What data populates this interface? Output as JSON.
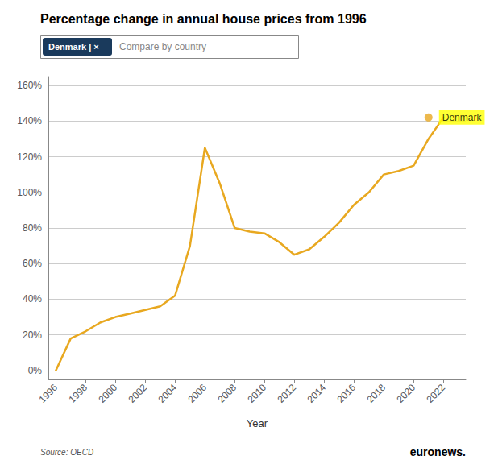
{
  "chart_data": {
    "type": "line",
    "title": "Percentage change in annual house prices from 1996",
    "xlabel": "Year",
    "x": [
      1996,
      1997,
      1998,
      1999,
      2000,
      2001,
      2002,
      2003,
      2004,
      2005,
      2006,
      2007,
      2008,
      2009,
      2010,
      2011,
      2012,
      2013,
      2014,
      2015,
      2016,
      2017,
      2018,
      2019,
      2020,
      2021,
      2022
    ],
    "values": [
      0,
      18,
      22,
      27,
      30,
      32,
      34,
      36,
      42,
      70,
      125,
      105,
      80,
      78,
      77,
      72,
      65,
      68,
      75,
      83,
      93,
      100,
      110,
      112,
      115,
      130,
      142
    ],
    "color": "#E8A820",
    "xlim": [
      1995.5,
      2023.5
    ],
    "xticks": [
      1996,
      1998,
      2000,
      2002,
      2004,
      2006,
      2008,
      2010,
      2012,
      2014,
      2016,
      2018,
      2020,
      2022
    ],
    "ylim": [
      -5,
      165
    ],
    "yticks": [
      {
        "value": 0,
        "label": "0%"
      },
      {
        "value": 20,
        "label": "20%"
      },
      {
        "value": 40,
        "label": "40%"
      },
      {
        "value": 60,
        "label": "60%"
      },
      {
        "value": 80,
        "label": "80%"
      },
      {
        "value": 100,
        "label": "100%"
      },
      {
        "value": 120,
        "label": "120%"
      },
      {
        "value": 140,
        "label": "140%"
      },
      {
        "value": 160,
        "label": "160%"
      }
    ],
    "grid": true,
    "annotations": [
      {
        "text": "Denmark",
        "x": 2021,
        "y": 142,
        "color": "#FFFF00"
      }
    ],
    "filter": {
      "text": "Denmark | ×",
      "color": "#1a3a5c"
    },
    "note": "Compare by country",
    "source": "Source: OECD",
    "credit": "euronews."
  }
}
